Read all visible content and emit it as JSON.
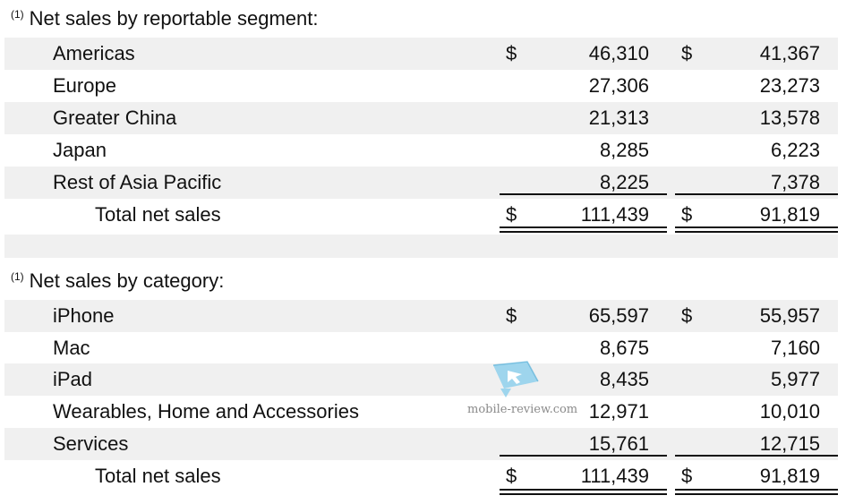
{
  "segment_section": {
    "footnote": "(1)",
    "title": "Net sales by reportable segment:",
    "rows": [
      {
        "label": "Americas",
        "cur1": "$",
        "val1": "46,310",
        "cur2": "$",
        "val2": "41,367"
      },
      {
        "label": "Europe",
        "cur1": "",
        "val1": "27,306",
        "cur2": "",
        "val2": "23,273"
      },
      {
        "label": "Greater China",
        "cur1": "",
        "val1": "21,313",
        "cur2": "",
        "val2": "13,578"
      },
      {
        "label": "Japan",
        "cur1": "",
        "val1": "8,285",
        "cur2": "",
        "val2": "6,223"
      },
      {
        "label": "Rest of Asia Pacific",
        "cur1": "",
        "val1": "8,225",
        "cur2": "",
        "val2": "7,378"
      }
    ],
    "total": {
      "label": "Total net sales",
      "cur1": "$",
      "val1": "111,439",
      "cur2": "$",
      "val2": "91,819"
    }
  },
  "category_section": {
    "footnote": "(1)",
    "title": "Net sales by category:",
    "rows": [
      {
        "label": "iPhone",
        "cur1": "$",
        "val1": "65,597",
        "cur2": "$",
        "val2": "55,957"
      },
      {
        "label": "Mac",
        "cur1": "",
        "val1": "8,675",
        "cur2": "",
        "val2": "7,160"
      },
      {
        "label": "iPad",
        "cur1": "",
        "val1": "8,435",
        "cur2": "",
        "val2": "5,977"
      },
      {
        "label": "Wearables, Home and Accessories",
        "cur1": "",
        "val1": "12,971",
        "cur2": "",
        "val2": "10,010"
      },
      {
        "label": "Services",
        "cur1": "",
        "val1": "15,761",
        "cur2": "",
        "val2": "12,715"
      }
    ],
    "total": {
      "label": "Total net sales",
      "cur1": "$",
      "val1": "111,439",
      "cur2": "$",
      "val2": "91,819"
    }
  },
  "watermark": {
    "text": "mobile-review.com",
    "icon": "mobile-review-logo-icon",
    "colors": {
      "logo": "#8fd0ec",
      "logo_dark": "#4aa8d4",
      "text": "#8a8a8a"
    }
  },
  "colors": {
    "row_shade": "#f0f0f0",
    "text": "#111111"
  }
}
